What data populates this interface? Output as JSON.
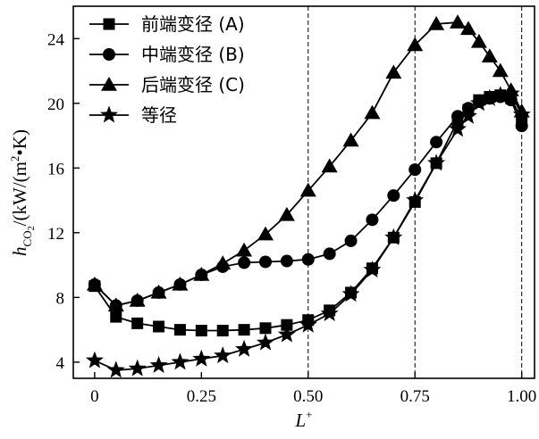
{
  "chart_data": {
    "type": "line",
    "xlabel_main": "L",
    "xlabel_sup": "+",
    "ylabel_parts": {
      "h": "h",
      "sub": "CO",
      "sub2": "2",
      "unit": "/(kW/(m",
      "sup": "2",
      "tail": "•K)"
    },
    "xlim": [
      -0.05,
      1.03
    ],
    "ylim": [
      3.0,
      26.0
    ],
    "xticks": [
      0,
      0.25,
      0.5,
      0.75,
      1.0
    ],
    "xtick_labels": [
      "0",
      "0.25",
      "0.50",
      "0.75",
      "1.00"
    ],
    "yticks": [
      4,
      8,
      12,
      16,
      20,
      24
    ],
    "ytick_labels": [
      "4",
      "8",
      "12",
      "16",
      "20",
      "24"
    ],
    "vlines": [
      0.5,
      0.75,
      1.0
    ],
    "legend_position": "top-left",
    "series": [
      {
        "name": "前端变径 (A)",
        "marker": "square",
        "x": [
          0,
          0.05,
          0.1,
          0.15,
          0.2,
          0.25,
          0.3,
          0.35,
          0.4,
          0.45,
          0.5,
          0.55,
          0.6,
          0.65,
          0.7,
          0.75,
          0.8,
          0.85,
          0.875,
          0.9,
          0.925,
          0.95,
          0.975,
          1.0
        ],
        "values": [
          8.7,
          6.8,
          6.4,
          6.2,
          6.0,
          5.95,
          5.95,
          6.0,
          6.1,
          6.3,
          6.6,
          7.2,
          8.3,
          9.8,
          11.7,
          13.9,
          16.3,
          18.9,
          19.6,
          20.2,
          20.4,
          20.5,
          20.3,
          19.0
        ]
      },
      {
        "name": "中端变径 (B)",
        "marker": "circle",
        "x": [
          0,
          0.05,
          0.1,
          0.15,
          0.2,
          0.25,
          0.3,
          0.35,
          0.4,
          0.45,
          0.5,
          0.55,
          0.6,
          0.65,
          0.7,
          0.75,
          0.8,
          0.85,
          0.875,
          0.9,
          0.925,
          0.95,
          0.975,
          1.0
        ],
        "values": [
          8.8,
          7.5,
          7.8,
          8.3,
          8.8,
          9.4,
          9.9,
          10.15,
          10.2,
          10.25,
          10.35,
          10.7,
          11.5,
          12.8,
          14.3,
          15.9,
          17.6,
          19.2,
          19.7,
          20.1,
          20.3,
          20.4,
          20.2,
          18.6
        ]
      },
      {
        "name": "后端变径 (C)",
        "marker": "triangle",
        "x": [
          0,
          0.05,
          0.1,
          0.15,
          0.2,
          0.25,
          0.3,
          0.35,
          0.4,
          0.45,
          0.5,
          0.55,
          0.6,
          0.65,
          0.7,
          0.75,
          0.8,
          0.85,
          0.875,
          0.9,
          0.925,
          0.95,
          0.975,
          1.0
        ],
        "values": [
          8.8,
          7.5,
          7.8,
          8.3,
          8.8,
          9.4,
          10.1,
          10.9,
          11.9,
          13.1,
          14.6,
          16.1,
          17.7,
          19.4,
          21.9,
          23.6,
          24.9,
          25.0,
          24.6,
          23.8,
          22.9,
          22.0,
          20.8,
          19.5
        ]
      },
      {
        "name": "等径",
        "marker": "star",
        "x": [
          0,
          0.05,
          0.1,
          0.15,
          0.2,
          0.25,
          0.3,
          0.35,
          0.4,
          0.45,
          0.5,
          0.55,
          0.6,
          0.65,
          0.7,
          0.75,
          0.8,
          0.85,
          0.875,
          0.9,
          0.925,
          0.95,
          0.975,
          1.0
        ],
        "values": [
          4.1,
          3.5,
          3.6,
          3.8,
          4.0,
          4.2,
          4.4,
          4.8,
          5.2,
          5.7,
          6.3,
          7.0,
          8.2,
          9.7,
          11.7,
          14.0,
          16.3,
          18.4,
          19.2,
          20.0,
          20.3,
          20.5,
          20.6,
          19.3
        ]
      }
    ]
  }
}
